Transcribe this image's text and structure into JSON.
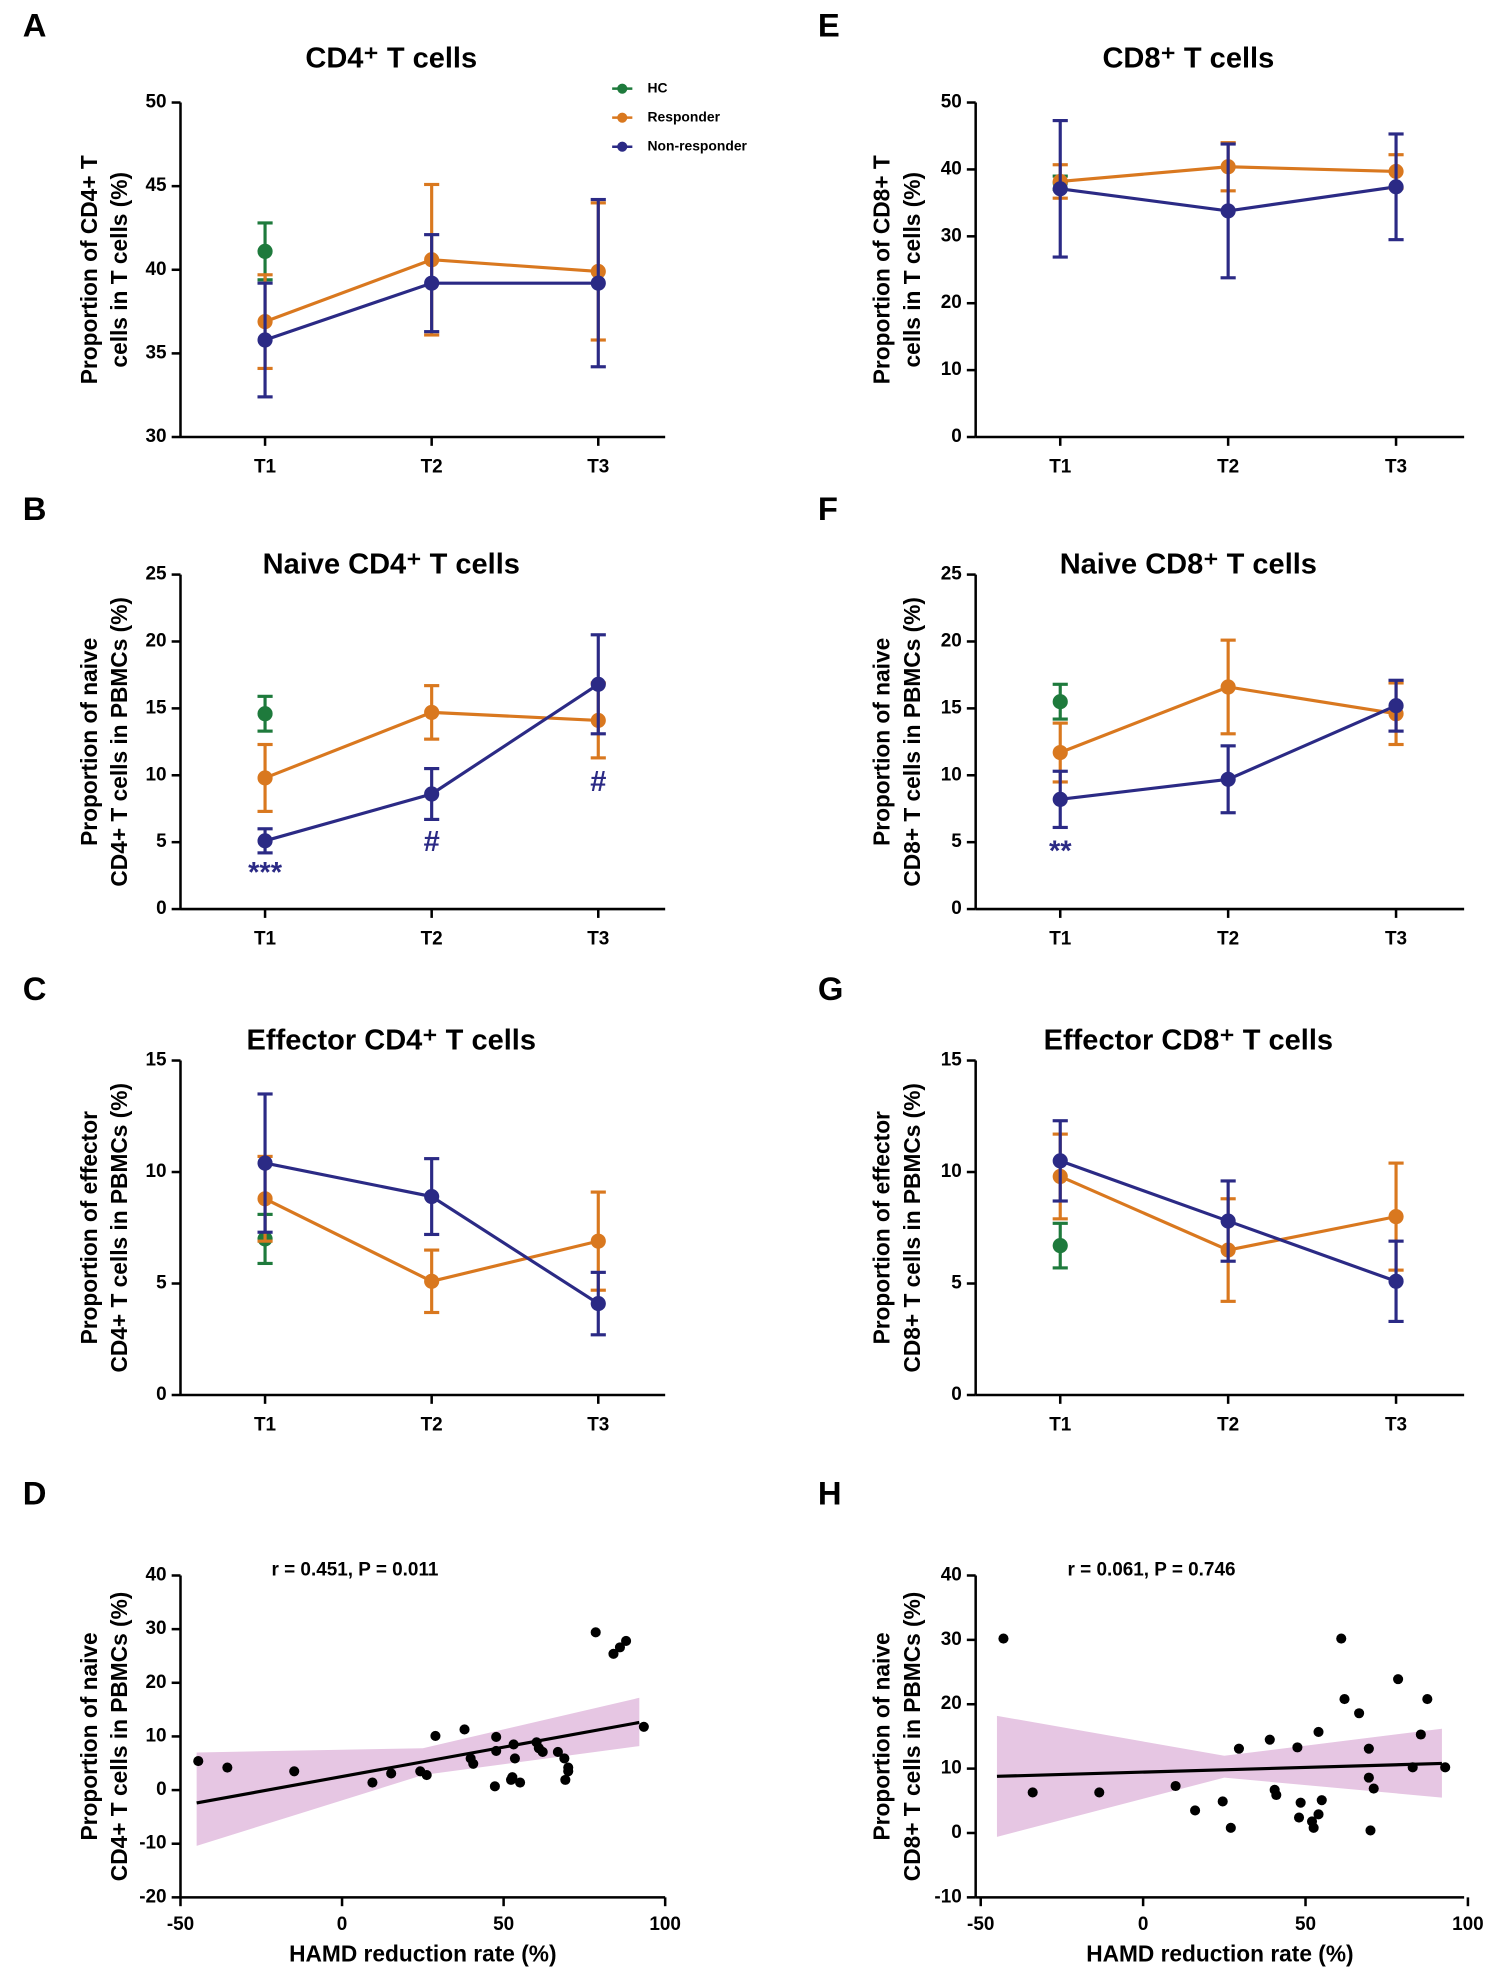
{
  "chart_data": [
    {
      "type": "line",
      "label": "A",
      "title": "CD4⁺ T cells",
      "ylabel": [
        "Proportion of CD4+ T",
        "cells in T cells (%)"
      ],
      "categories": [
        "T1",
        "T2",
        "T3"
      ],
      "ylim": [
        30,
        50
      ],
      "yticks": [
        30,
        35,
        40,
        45,
        50
      ],
      "legend": "upper right",
      "series": [
        {
          "name": "HC",
          "color": "#1e7a3c",
          "values": [
            41.1,
            null,
            null
          ],
          "errors": [
            1.7,
            null,
            null
          ]
        },
        {
          "name": "Responder",
          "color": "#d9781f",
          "values": [
            36.9,
            40.6,
            39.9
          ],
          "errors": [
            2.8,
            4.5,
            4.1
          ]
        },
        {
          "name": "Non-responder",
          "color": "#2b2a85",
          "values": [
            35.8,
            39.2,
            39.2
          ],
          "errors": [
            3.4,
            2.9,
            5.0
          ]
        }
      ]
    },
    {
      "type": "line",
      "label": "B",
      "title": "Naive CD4⁺ T cells",
      "ylabel": [
        "Proportion of naive",
        "CD4+ T cells in PBMCs (%)"
      ],
      "categories": [
        "T1",
        "T2",
        "T3"
      ],
      "ylim": [
        0,
        25
      ],
      "yticks": [
        0,
        5,
        10,
        15,
        20,
        25
      ],
      "series": [
        {
          "name": "HC",
          "color": "#1e7a3c",
          "values": [
            14.6,
            null,
            null
          ],
          "errors": [
            1.3,
            null,
            null
          ]
        },
        {
          "name": "Responder",
          "color": "#d9781f",
          "values": [
            9.8,
            14.7,
            14.1
          ],
          "errors": [
            2.5,
            2.0,
            2.8
          ]
        },
        {
          "name": "Non-responder",
          "color": "#2b2a85",
          "values": [
            5.1,
            8.6,
            16.8
          ],
          "errors": [
            0.9,
            1.9,
            3.7
          ]
        }
      ],
      "annotations": [
        {
          "text": "***",
          "x": "T1",
          "y": 2.6,
          "color": "#2b2a85"
        },
        {
          "text": "#",
          "x": "T2",
          "y": 4.9,
          "color": "#2b2a85"
        },
        {
          "text": "#",
          "x": "T3",
          "y": 9.4,
          "color": "#2b2a85"
        }
      ]
    },
    {
      "type": "line",
      "label": "C",
      "title": "Effector CD4⁺ T cells",
      "ylabel": [
        "Proportion of effector",
        "CD4+ T cells in PBMCs (%)"
      ],
      "categories": [
        "T1",
        "T2",
        "T3"
      ],
      "ylim": [
        0,
        15
      ],
      "yticks": [
        0,
        5,
        10,
        15
      ],
      "series": [
        {
          "name": "HC",
          "color": "#1e7a3c",
          "values": [
            7.0,
            null,
            null
          ],
          "errors": [
            1.1,
            null,
            null
          ]
        },
        {
          "name": "Responder",
          "color": "#d9781f",
          "values": [
            8.8,
            5.1,
            6.9
          ],
          "errors": [
            1.9,
            1.4,
            2.2
          ]
        },
        {
          "name": "Non-responder",
          "color": "#2b2a85",
          "values": [
            10.4,
            8.9,
            4.1
          ],
          "errors": [
            3.1,
            1.7,
            1.4
          ]
        }
      ]
    },
    {
      "type": "scatter",
      "label": "D",
      "xlabel": "HAMD reduction rate (%)",
      "ylabel": [
        "Proportion of naive",
        "CD4+ T cells in PBMCs (%)"
      ],
      "annotation": "r = 0.451, P = 0.011",
      "color": "#000000",
      "xlim": [
        -50,
        100
      ],
      "xticks": [
        -50,
        0,
        50,
        100
      ],
      "ylim": [
        -20,
        40
      ],
      "yticks": [
        -20,
        -10,
        0,
        10,
        20,
        30,
        40
      ],
      "x": [
        -44.5,
        -35.5,
        -14.8,
        9.4,
        15.2,
        24.2,
        26.2,
        28.9,
        37.9,
        39.8,
        40.6,
        47.7,
        47.7,
        47.3,
        52.3,
        52.7,
        55.1,
        53.1,
        53.5,
        60.2,
        60.9,
        62.1,
        66.8,
        68.8,
        69.1,
        70,
        70,
        78.5,
        84,
        86,
        87.9,
        93.4
      ],
      "y": [
        5.4,
        4.2,
        3.5,
        1.4,
        3.1,
        3.5,
        2.8,
        10.1,
        11.3,
        5.9,
        4.9,
        9.9,
        7.3,
        0.7,
        1.9,
        2.4,
        1.4,
        8.5,
        5.9,
        8.9,
        7.8,
        7.1,
        7.1,
        5.9,
        1.9,
        4.2,
        3.5,
        29.4,
        25.4,
        26.6,
        27.8,
        11.8
      ],
      "fit": {
        "x": [
          -45,
          92
        ],
        "y": [
          -2.4,
          12.6
        ],
        "color": "#000000"
      },
      "ci": {
        "x": [
          -45,
          25,
          92
        ],
        "lower": [
          -10.4,
          2.8,
          8.2
        ],
        "upper": [
          7,
          7.8,
          17.2
        ],
        "color": "#e6c6e3"
      }
    },
    {
      "type": "line",
      "label": "E",
      "title": "CD8⁺ T cells",
      "ylabel": [
        "Proportion of CD8+ T",
        "cells in T cells (%)"
      ],
      "categories": [
        "T1",
        "T2",
        "T3"
      ],
      "ylim": [
        0,
        50
      ],
      "yticks": [
        0,
        10,
        20,
        30,
        40,
        50
      ],
      "series": [
        {
          "name": "HC",
          "color": "#1e7a3c",
          "values": [
            38.0,
            null,
            null
          ],
          "errors": [
            1.0,
            null,
            null
          ]
        },
        {
          "name": "Responder",
          "color": "#d9781f",
          "values": [
            38.2,
            40.4,
            39.7
          ],
          "errors": [
            2.5,
            3.6,
            2.5
          ]
        },
        {
          "name": "Non-responder",
          "color": "#2b2a85",
          "values": [
            37.1,
            33.8,
            37.4
          ],
          "errors": [
            10.2,
            10.0,
            7.9
          ]
        }
      ]
    },
    {
      "type": "line",
      "label": "F",
      "title": "Naive CD8⁺ T cells",
      "ylabel": [
        "Proportion of naive",
        "CD8+ T cells in PBMCs (%)"
      ],
      "categories": [
        "T1",
        "T2",
        "T3"
      ],
      "ylim": [
        0,
        25
      ],
      "yticks": [
        0,
        5,
        10,
        15,
        20,
        25
      ],
      "series": [
        {
          "name": "HC",
          "color": "#1e7a3c",
          "values": [
            15.5,
            null,
            null
          ],
          "errors": [
            1.3,
            null,
            null
          ]
        },
        {
          "name": "Responder",
          "color": "#d9781f",
          "values": [
            11.7,
            16.6,
            14.6
          ],
          "errors": [
            2.2,
            3.5,
            2.3
          ]
        },
        {
          "name": "Non-responder",
          "color": "#2b2a85",
          "values": [
            8.2,
            9.7,
            15.2
          ],
          "errors": [
            2.1,
            2.5,
            1.9
          ]
        }
      ],
      "annotations": [
        {
          "text": "**",
          "x": "T1",
          "y": 4.2,
          "color": "#2b2a85"
        }
      ]
    },
    {
      "type": "line",
      "label": "G",
      "title": "Effector CD8⁺ T cells",
      "ylabel": [
        "Proportion of effector",
        "CD8+ T cells in PBMCs (%)"
      ],
      "categories": [
        "T1",
        "T2",
        "T3"
      ],
      "ylim": [
        0,
        15
      ],
      "yticks": [
        0,
        5,
        10,
        15
      ],
      "series": [
        {
          "name": "HC",
          "color": "#1e7a3c",
          "values": [
            6.7,
            null,
            null
          ],
          "errors": [
            1.0,
            null,
            null
          ]
        },
        {
          "name": "Responder",
          "color": "#d9781f",
          "values": [
            9.8,
            6.5,
            8.0
          ],
          "errors": [
            1.9,
            2.3,
            2.4
          ]
        },
        {
          "name": "Non-responder",
          "color": "#2b2a85",
          "values": [
            10.5,
            7.8,
            5.1
          ],
          "errors": [
            1.8,
            1.8,
            1.8
          ]
        }
      ]
    },
    {
      "type": "scatter",
      "label": "H",
      "xlabel": "HAMD reduction rate (%)",
      "ylabel": [
        "Proportion of naive",
        "CD8+ T cells in PBMCs (%)"
      ],
      "annotation": "r = 0.061, P = 0.746",
      "color": "#000000",
      "xlim": [
        -50,
        100
      ],
      "xticks": [
        -50,
        0,
        50,
        100
      ],
      "ylim": [
        -10,
        40
      ],
      "yticks": [
        -10,
        0,
        10,
        20,
        30,
        40
      ],
      "x": [
        -43,
        -34,
        -13.5,
        10,
        16,
        24.5,
        27,
        29.5,
        39,
        40.5,
        41,
        47.5,
        48.5,
        48,
        52,
        52.5,
        54,
        54,
        55,
        61,
        62,
        66.5,
        69.5,
        69.5,
        70,
        71,
        78.5,
        85.5,
        87.5,
        83,
        93
      ],
      "y": [
        30.2,
        6.3,
        6.3,
        7.3,
        3.5,
        4.9,
        0.8,
        13.1,
        14.5,
        6.7,
        5.9,
        13.3,
        4.7,
        2.4,
        1.8,
        0.8,
        2.9,
        15.7,
        5.1,
        30.2,
        20.8,
        18.6,
        13.1,
        8.6,
        0.4,
        6.9,
        23.9,
        15.3,
        20.8,
        10.2,
        10.2
      ],
      "fit": {
        "x": [
          -45,
          92
        ],
        "y": [
          8.8,
          10.8
        ],
        "color": "#000000"
      },
      "ci": {
        "x": [
          -45,
          25,
          92
        ],
        "lower": [
          -0.6,
          8.6,
          5.5
        ],
        "upper": [
          18.2,
          12.0,
          16.2
        ],
        "color": "#e6c6e3"
      }
    }
  ]
}
